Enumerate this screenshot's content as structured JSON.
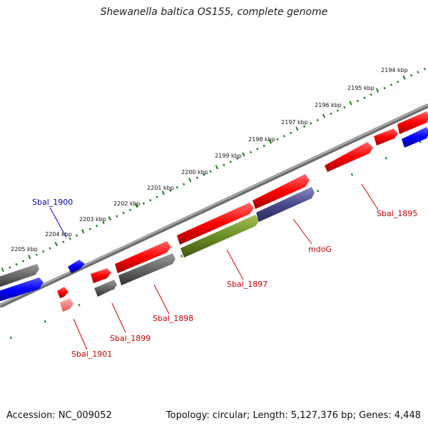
{
  "title": "Shewanella baltica OS155, complete genome",
  "footer": {
    "accession": "Accession: NC_009052",
    "summary": "Topology: circular; Length: 5,127,376 bp; Genes: 4,448"
  },
  "colors": {
    "backbone": "#8a8a8a",
    "tick_ring": "#1e7d1e",
    "red_gene": "#ff0000",
    "gray_gene": "#666666",
    "blue_gene": "#0000ff",
    "olive_gene": "#6b8e23",
    "slate_gene": "#4a4a8c",
    "label_red": "#cc0000",
    "label_blue": "#0000aa"
  },
  "scale_ticks": [
    {
      "label": "2194 kbp"
    },
    {
      "label": "2195 kbp"
    },
    {
      "label": "2196 kbp"
    },
    {
      "label": "2197 kbp"
    },
    {
      "label": "2198 kbp"
    },
    {
      "label": "2199 kbp"
    },
    {
      "label": "2200 kbp"
    },
    {
      "label": "2201 kbp"
    },
    {
      "label": "2202 kbp"
    },
    {
      "label": "2203 kbp"
    },
    {
      "label": "2204 kbp"
    },
    {
      "label": "2205 kbp"
    }
  ],
  "gene_labels": [
    {
      "name": "Sbal_1900",
      "color_key": "label_blue"
    },
    {
      "name": "Sbal_1895",
      "color_key": "label_red"
    },
    {
      "name": "mdoG",
      "color_key": "label_red"
    },
    {
      "name": "Sbal_1897",
      "color_key": "label_red"
    },
    {
      "name": "Sbal_1898",
      "color_key": "label_red"
    },
    {
      "name": "Sbal_1899",
      "color_key": "label_red"
    },
    {
      "name": "Sbal_1901",
      "color_key": "label_red"
    }
  ]
}
